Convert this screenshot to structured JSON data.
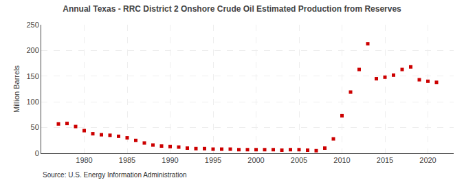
{
  "chart_data": {
    "type": "scatter",
    "title": "Annual Texas - RRC District 2 Onshore Crude Oil Estimated Production from Reserves",
    "y_label": "Million Barrels",
    "annotations": [
      "Source: U.S. Energy Information Administration"
    ],
    "x": [
      1977,
      1978,
      1979,
      1980,
      1981,
      1982,
      1983,
      1984,
      1985,
      1986,
      1987,
      1988,
      1989,
      1990,
      1991,
      1992,
      1993,
      1994,
      1995,
      1996,
      1997,
      1998,
      1999,
      2000,
      2001,
      2002,
      2003,
      2004,
      2005,
      2006,
      2007,
      2008,
      2009,
      2010,
      2011,
      2012,
      2013,
      2014,
      2015,
      2016,
      2017,
      2018,
      2019,
      2020,
      2021
    ],
    "values": [
      57,
      58,
      52,
      44,
      38,
      36,
      35,
      33,
      30,
      25,
      20,
      16,
      14,
      13,
      12,
      10,
      9,
      9,
      8,
      8,
      8,
      7,
      7,
      7,
      7,
      7,
      6,
      7,
      7,
      6,
      5,
      10,
      28,
      73,
      119,
      163,
      213,
      145,
      148,
      152,
      163,
      168,
      143,
      140,
      138
    ],
    "color": "#cc0000",
    "marker": "square",
    "xlim": [
      1975,
      2023
    ],
    "xticks": [
      1980,
      1985,
      1990,
      1995,
      2000,
      2005,
      2010,
      2015,
      2020
    ],
    "ylim": [
      0,
      250
    ],
    "yticks": [
      0,
      50,
      100,
      150,
      200,
      250
    ],
    "grid": true
  }
}
